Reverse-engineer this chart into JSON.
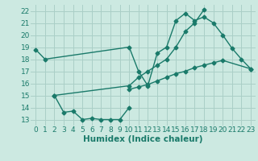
{
  "bg_color": "#cce9e1",
  "grid_color": "#aacfc7",
  "line_color": "#1a7a6a",
  "line_width": 1.0,
  "marker": "D",
  "marker_size": 2.5,
  "xlabel": "Humidex (Indice chaleur)",
  "xlabel_fontsize": 7.5,
  "tick_fontsize": 6.5,
  "ylim": [
    12.5,
    22.5
  ],
  "xlim": [
    -0.5,
    23.5
  ],
  "yticks": [
    13,
    14,
    15,
    16,
    17,
    18,
    19,
    20,
    21,
    22
  ],
  "xticks": [
    0,
    1,
    2,
    3,
    4,
    5,
    6,
    7,
    8,
    9,
    10,
    11,
    12,
    13,
    14,
    15,
    16,
    17,
    18,
    19,
    20,
    21,
    22,
    23
  ],
  "series": [
    {
      "x": [
        0,
        1,
        10,
        11,
        12,
        13,
        14,
        15,
        16,
        17,
        18,
        19,
        20,
        21,
        22,
        23
      ],
      "y": [
        18.8,
        18.0,
        19.0,
        17.0,
        15.8,
        18.5,
        19.0,
        21.2,
        21.8,
        21.2,
        21.5,
        21.0,
        20.0,
        18.9,
        18.0,
        17.2
      ]
    },
    {
      "x": [
        2,
        3,
        4,
        5,
        6,
        7,
        8,
        9,
        10
      ],
      "y": [
        15.0,
        13.6,
        13.7,
        13.0,
        13.1,
        13.0,
        13.0,
        13.0,
        14.0
      ]
    },
    {
      "x": [
        2,
        10,
        11,
        12,
        13,
        14,
        15,
        16,
        17,
        18
      ],
      "y": [
        15.0,
        15.8,
        16.5,
        17.0,
        17.5,
        18.0,
        19.0,
        20.3,
        21.0,
        22.1
      ]
    },
    {
      "x": [
        10,
        11,
        12,
        13,
        14,
        15,
        16,
        17,
        18,
        19,
        20,
        23
      ],
      "y": [
        15.5,
        15.7,
        15.9,
        16.2,
        16.5,
        16.8,
        17.0,
        17.3,
        17.5,
        17.7,
        17.9,
        17.2
      ]
    }
  ]
}
